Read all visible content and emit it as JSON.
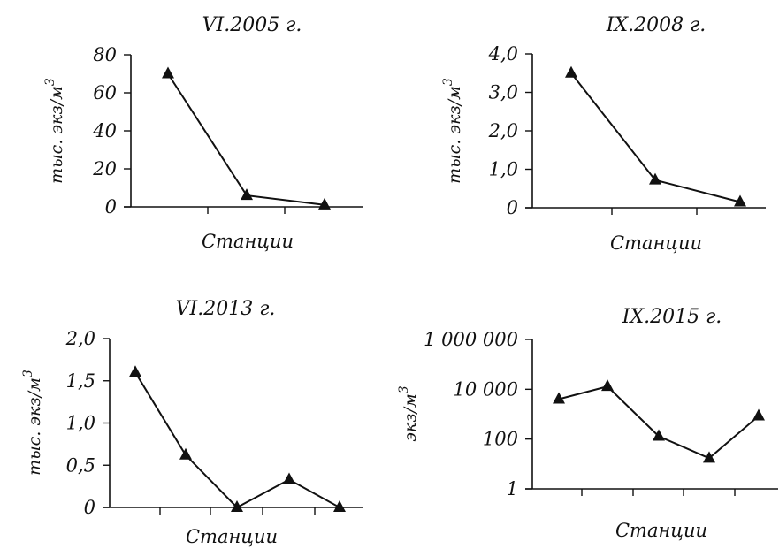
{
  "chart_data": [
    {
      "type": "line",
      "title": "VI.2005 г.",
      "xlabel": "Станции",
      "ylabel": "тыс. экз/м",
      "ylabel_sup": "3",
      "ylim": [
        0,
        80
      ],
      "yticks": [
        "0",
        "20",
        "40",
        "60",
        "80"
      ],
      "ytick_values": [
        0,
        20,
        40,
        60,
        80
      ],
      "log": false,
      "x": [
        1,
        2,
        3
      ],
      "values": [
        70,
        6,
        1
      ]
    },
    {
      "type": "line",
      "title": "IX.2008 г.",
      "xlabel": "Станции",
      "ylabel": "тыс. экз/м",
      "ylabel_sup": "3",
      "ylim": [
        0,
        4
      ],
      "yticks": [
        "0",
        "1,0",
        "2,0",
        "3,0",
        "4,0"
      ],
      "ytick_values": [
        0,
        1,
        2,
        3,
        4
      ],
      "log": false,
      "x": [
        1,
        2,
        3
      ],
      "values": [
        3.5,
        0.72,
        0.15
      ]
    },
    {
      "type": "line",
      "title": "VI.2013 г.",
      "xlabel": "Станции",
      "ylabel": "тыс. экз/м",
      "ylabel_sup": "3",
      "ylim": [
        0,
        2
      ],
      "yticks": [
        "0",
        "0,5",
        "1,0",
        "1,5",
        "2,0"
      ],
      "ytick_values": [
        0,
        0.5,
        1,
        1.5,
        2
      ],
      "log": false,
      "x": [
        1,
        2,
        3,
        4,
        5
      ],
      "values": [
        1.6,
        0.62,
        0.0,
        0.33,
        0.0
      ]
    },
    {
      "type": "line",
      "title": "IX.2015 г.",
      "xlabel": "Станции",
      "ylabel": "экз/м",
      "ylabel_sup": "3",
      "ylim": [
        1,
        1000000
      ],
      "yticks": [
        "1",
        "100",
        "10 000",
        "1 000 000"
      ],
      "ytick_values": [
        1,
        100,
        10000,
        1000000
      ],
      "log": true,
      "x": [
        1,
        2,
        3,
        4,
        5
      ],
      "values": [
        4000,
        13000,
        130,
        17,
        850
      ]
    }
  ]
}
